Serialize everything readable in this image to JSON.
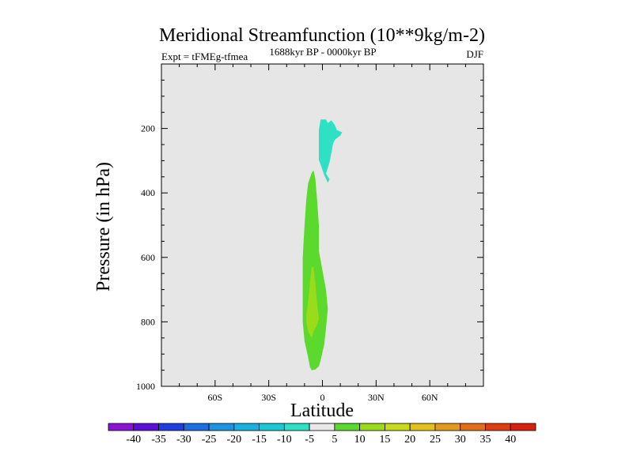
{
  "chart_data": {
    "type": "contour",
    "title": "Meridional Streamfunction (10**9kg/m-2)",
    "left_label": "Expt = tFMEg-tfmea",
    "center_label": "1688kyr BP - 0000kyr BP",
    "right_label": "DJF",
    "xlabel": "Latitude",
    "ylabel": "Pressure (in hPa)",
    "xlim": [
      -90,
      90
    ],
    "ylim": [
      1000,
      0
    ],
    "x_ticks": [
      {
        "value": -60,
        "label": "60S"
      },
      {
        "value": -30,
        "label": "30S"
      },
      {
        "value": 0,
        "label": "0"
      },
      {
        "value": 30,
        "label": "30N"
      },
      {
        "value": 60,
        "label": "60N"
      }
    ],
    "y_ticks": [
      {
        "value": 200,
        "label": "200"
      },
      {
        "value": 400,
        "label": "400"
      },
      {
        "value": 600,
        "label": "600"
      },
      {
        "value": 800,
        "label": "800"
      },
      {
        "value": 1000,
        "label": "1000"
      }
    ],
    "background_color": "#e6e6e6",
    "regions": [
      {
        "name": "negative-cell-upper",
        "level": -10,
        "color": "#2ee0c4",
        "points": [
          [
            -1,
            172
          ],
          [
            2,
            172
          ],
          [
            3,
            183
          ],
          [
            5,
            175
          ],
          [
            7,
            190
          ],
          [
            8,
            205
          ],
          [
            11,
            212
          ],
          [
            10,
            222
          ],
          [
            7,
            235
          ],
          [
            6,
            245
          ],
          [
            4,
            305
          ],
          [
            3,
            322
          ],
          [
            2,
            340
          ],
          [
            4,
            358
          ],
          [
            3,
            368
          ],
          [
            1,
            345
          ],
          [
            -1,
            312
          ],
          [
            -2,
            298
          ],
          [
            -2,
            255
          ],
          [
            -2,
            205
          ]
        ]
      },
      {
        "name": "positive-cell-outer",
        "level": 5,
        "color": "#5bd92d",
        "points": [
          [
            -6,
            338
          ],
          [
            -5,
            330
          ],
          [
            -4,
            355
          ],
          [
            -3,
            420
          ],
          [
            -2,
            500
          ],
          [
            -2,
            580
          ],
          [
            0,
            640
          ],
          [
            2,
            700
          ],
          [
            3,
            760
          ],
          [
            2,
            820
          ],
          [
            1,
            870
          ],
          [
            -1,
            920
          ],
          [
            -2,
            938
          ],
          [
            -4,
            948
          ],
          [
            -6,
            950
          ],
          [
            -7,
            940
          ],
          [
            -8,
            910
          ],
          [
            -10,
            860
          ],
          [
            -11,
            800
          ],
          [
            -11,
            700
          ],
          [
            -11,
            600
          ],
          [
            -10,
            500
          ],
          [
            -9,
            420
          ],
          [
            -8,
            370
          ]
        ]
      },
      {
        "name": "positive-cell-inner",
        "level": 10,
        "color": "#9bdc1a",
        "points": [
          [
            -6,
            630
          ],
          [
            -5,
            630
          ],
          [
            -4,
            680
          ],
          [
            -3,
            740
          ],
          [
            -2,
            790
          ],
          [
            -3,
            810
          ],
          [
            -5,
            830
          ],
          [
            -6,
            850
          ],
          [
            -8,
            830
          ],
          [
            -9,
            800
          ],
          [
            -9,
            780
          ],
          [
            -8,
            740
          ],
          [
            -7,
            680
          ]
        ]
      }
    ],
    "colorbar": {
      "labels": [
        "-40",
        "-35",
        "-30",
        "-25",
        "-20",
        "-15",
        "-10",
        "-5",
        "5",
        "10",
        "15",
        "20",
        "25",
        "30",
        "35",
        "40"
      ],
      "colors": [
        "#8a13d6",
        "#5a10d8",
        "#1f3ee0",
        "#1c6fe2",
        "#1a94e3",
        "#17b2df",
        "#1ac9d6",
        "#2ee0c4",
        "#e9e9e9",
        "#5bd92d",
        "#9bdc1a",
        "#c7db1a",
        "#e2c21a",
        "#e49a1a",
        "#e46e18",
        "#e03c12",
        "#d9200d"
      ]
    }
  }
}
